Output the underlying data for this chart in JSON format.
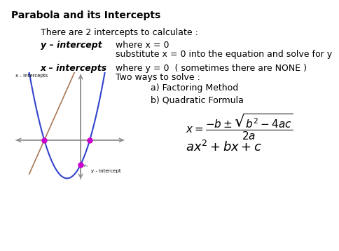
{
  "title": "Parabola and its Intercepts",
  "line1": "There are 2 intercepts to calculate :",
  "label_y_intercept": "y – intercept",
  "text_y_intercept": "where x = 0",
  "text_y_intercept2": "substitute x = 0 into the equation and solve for y",
  "label_x_intercepts": "x – intercepts",
  "text_x_intercepts": "where y = 0  ( sometimes there are NONE )",
  "text_two_ways": "Two ways to solve :",
  "text_a": "a) Factoring Method",
  "text_b": "b) Quadratic Formula",
  "formula": "$x = \\dfrac{-b \\pm \\sqrt{b^2 - 4ac}}{2a}$",
  "quadratic": "$ax^2 + bx + c$",
  "x_intercepts_label": "x - intercepts",
  "y_intercept_label": "y - intercept",
  "bg_color": "#ffffff",
  "parabola_color": "#3344cc",
  "tangent_color": "#aa7755",
  "intercept_dot_color": "#cc00cc",
  "axis_color": "#888888",
  "title_fontsize": 10,
  "body_fontsize": 9,
  "bold_fontsize": 9,
  "formula_fontsize": 11,
  "quadratic_fontsize": 13
}
